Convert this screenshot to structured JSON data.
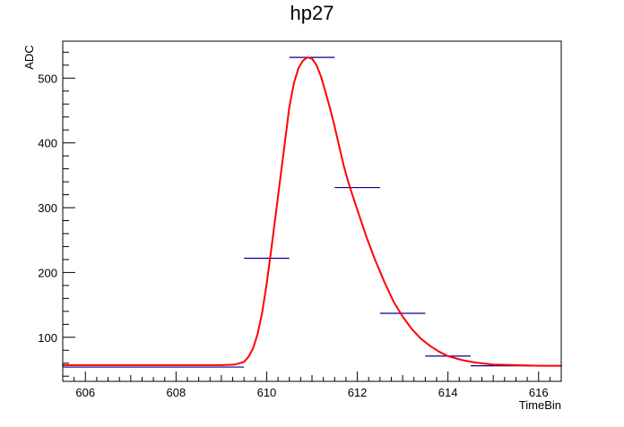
{
  "chart_data": {
    "type": "line",
    "title": "hp27",
    "xlabel": "TimeBin",
    "ylabel": "ADC",
    "xlim": [
      605.5,
      616.5
    ],
    "ylim": [
      32,
      557
    ],
    "x_ticks": [
      606,
      608,
      610,
      612,
      614,
      616
    ],
    "y_ticks": [
      100,
      200,
      300,
      400,
      500
    ],
    "grid": false,
    "colors": {
      "histogram": "#000099",
      "fit": "#ff0000",
      "axis": "#000000"
    },
    "series": [
      {
        "kind": "histogram",
        "bins": [
          {
            "x0": 605.5,
            "x1": 609.5,
            "y": 54
          },
          {
            "x0": 609.5,
            "x1": 610.5,
            "y": 222
          },
          {
            "x0": 610.5,
            "x1": 611.5,
            "y": 532
          },
          {
            "x0": 611.5,
            "x1": 612.5,
            "y": 331
          },
          {
            "x0": 612.5,
            "x1": 613.5,
            "y": 137
          },
          {
            "x0": 613.5,
            "x1": 614.5,
            "y": 71
          },
          {
            "x0": 614.5,
            "x1": 616.5,
            "y": 56
          }
        ]
      },
      {
        "kind": "fit",
        "x": [
          605.5,
          609.0,
          609.3,
          609.5,
          609.6,
          609.7,
          609.8,
          609.9,
          610.0,
          610.1,
          610.2,
          610.3,
          610.4,
          610.5,
          610.6,
          610.7,
          610.8,
          610.9,
          611.0,
          611.1,
          611.2,
          611.3,
          611.4,
          611.5,
          611.6,
          611.7,
          611.8,
          611.9,
          612.0,
          612.2,
          612.4,
          612.6,
          612.8,
          613.0,
          613.2,
          613.4,
          613.6,
          613.8,
          614.0,
          614.3,
          614.6,
          615.0,
          615.5,
          616.0,
          616.5
        ],
        "y": [
          57,
          57,
          58,
          62,
          70,
          83,
          105,
          138,
          183,
          235,
          290,
          345,
          400,
          455,
          492,
          515,
          527,
          532,
          530,
          520,
          502,
          478,
          453,
          425,
          395,
          365,
          340,
          318,
          297,
          255,
          218,
          185,
          155,
          132,
          113,
          98,
          87,
          78,
          71,
          65,
          61,
          58,
          57,
          56,
          56
        ]
      }
    ]
  }
}
